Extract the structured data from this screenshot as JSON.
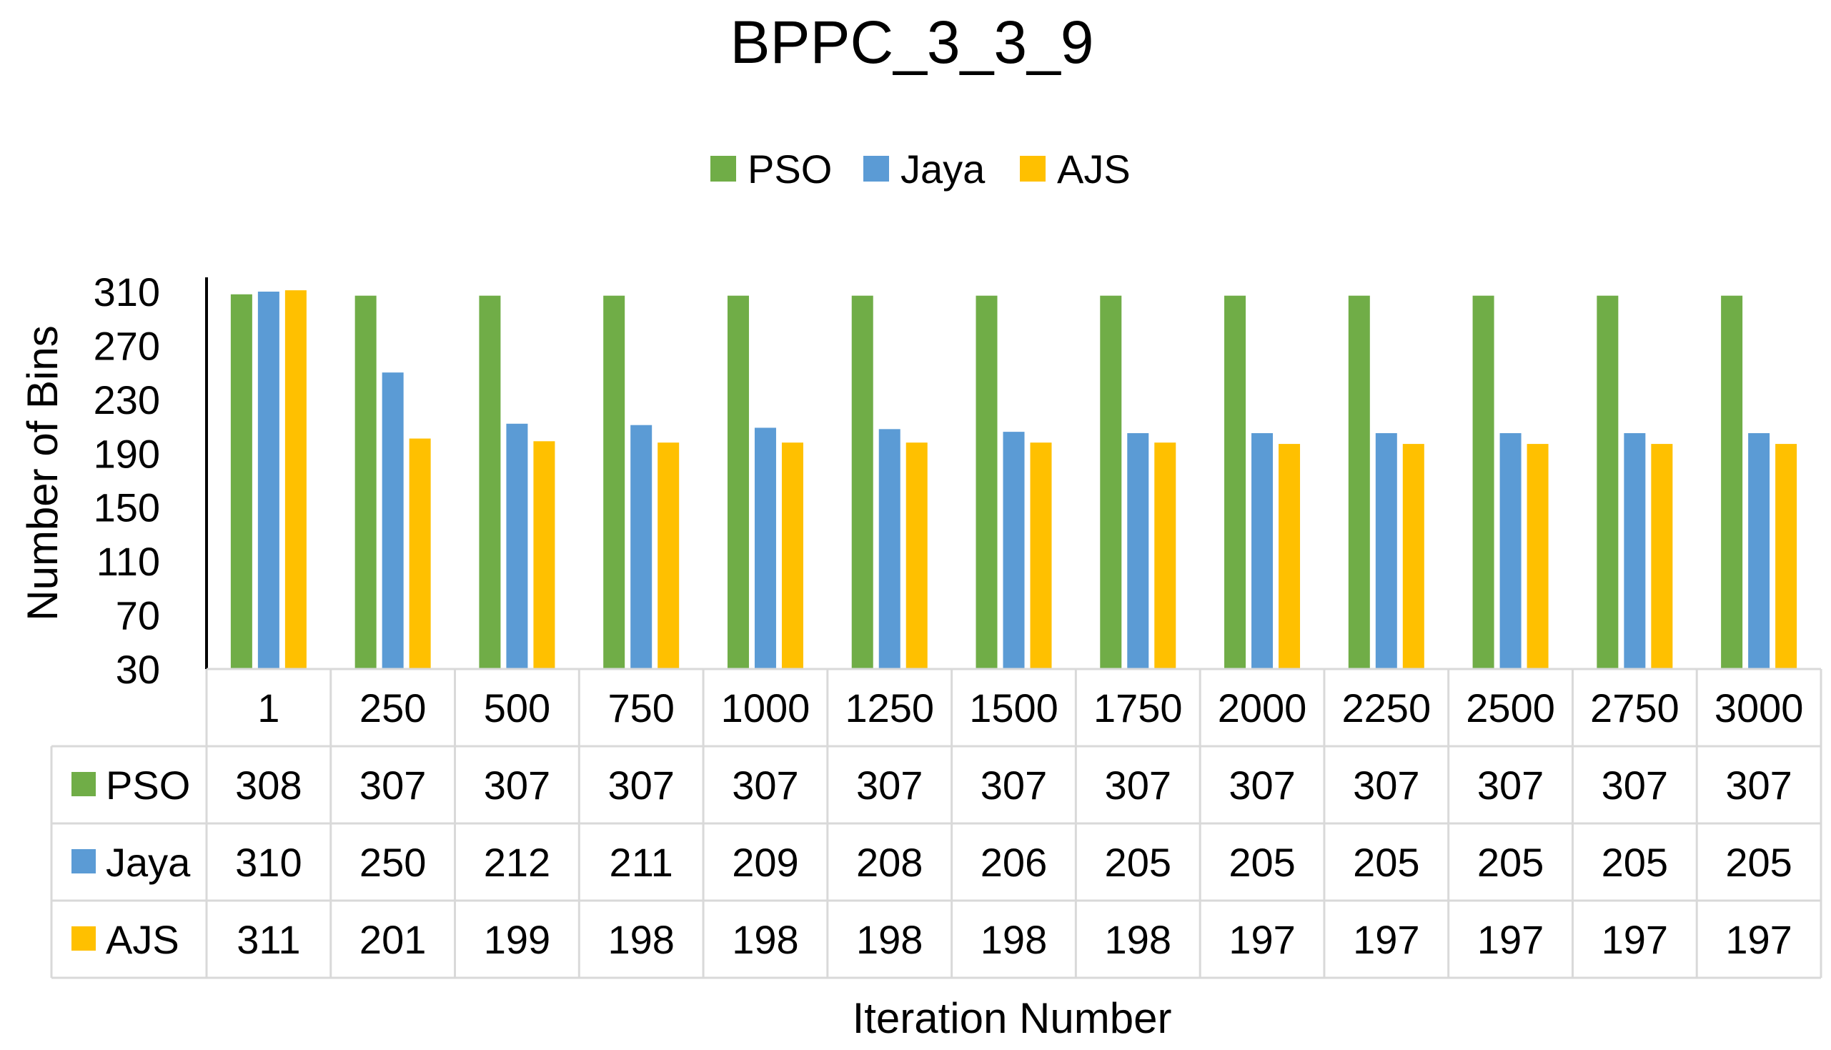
{
  "chart_data": {
    "type": "bar",
    "title": "BPPC_3_3_9",
    "xlabel": "Iteration Number",
    "ylabel": "Number of Bins",
    "ylim": [
      30,
      310
    ],
    "yticks": [
      310,
      270,
      230,
      190,
      150,
      110,
      70,
      30
    ],
    "categories": [
      "1",
      "250",
      "500",
      "750",
      "1000",
      "1250",
      "1500",
      "1750",
      "2000",
      "2250",
      "2500",
      "2750",
      "3000"
    ],
    "series": [
      {
        "name": "PSO",
        "color": "#70ad47",
        "values": [
          308,
          307,
          307,
          307,
          307,
          307,
          307,
          307,
          307,
          307,
          307,
          307,
          307
        ]
      },
      {
        "name": "Jaya",
        "color": "#5b9bd5",
        "values": [
          310,
          250,
          212,
          211,
          209,
          208,
          206,
          205,
          205,
          205,
          205,
          205,
          205
        ]
      },
      {
        "name": "AJS",
        "color": "#ffc000",
        "values": [
          311,
          201,
          199,
          198,
          198,
          198,
          198,
          198,
          197,
          197,
          197,
          197,
          197
        ]
      }
    ],
    "legend_position": "top-center",
    "data_table": true
  }
}
